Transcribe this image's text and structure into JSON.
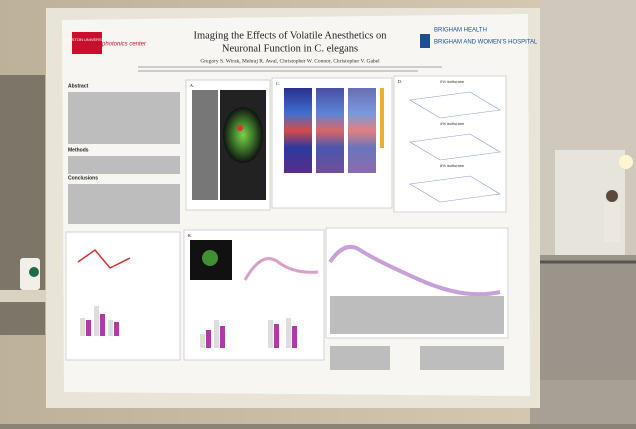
{
  "poster": {
    "title_line1": "Imaging the Effects of Volatile Anesthetics on",
    "title_line2": "Neuronal Function in C. elegans",
    "authors": "Gregory S. Wirak, Mehraj R. Awal, Christopher W. Connor, Christopher V. Gabel",
    "logo_left_1": "BOSTON UNIVERSITY",
    "logo_left_2": "photonics center",
    "logo_right_1": "BRIGHAM HEALTH",
    "logo_right_2": "BRIGHAM AND WOMEN'S HOSPITAL",
    "sections": [
      "Abstract",
      "Methods",
      "Conclusions"
    ],
    "panel_labels": [
      "A.",
      "B.",
      "C.",
      "D."
    ],
    "conditions": [
      "0% isoflurane",
      "4% isoflurane",
      "8% isoflurane"
    ]
  }
}
